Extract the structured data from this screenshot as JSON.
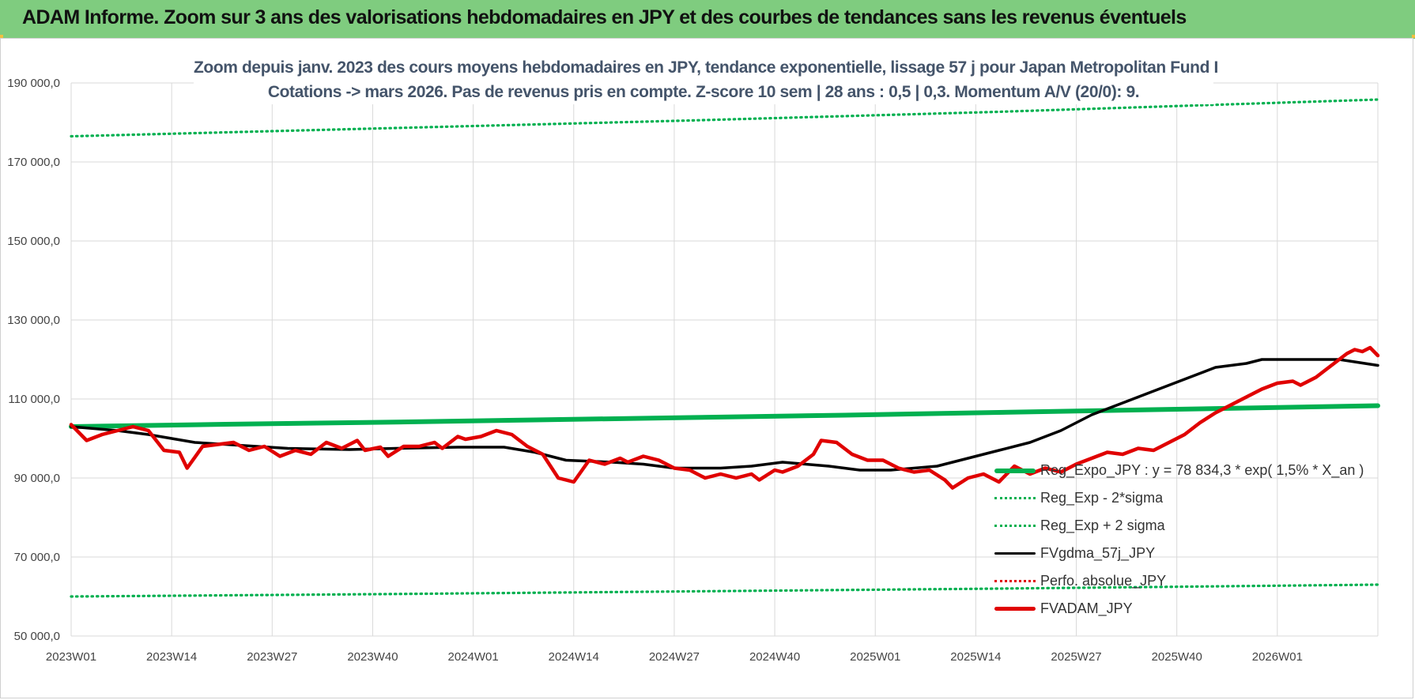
{
  "header": {
    "banner_title": "ADAM Informe. Zoom sur 3 ans des valorisations hebdomadaires en JPY et des courbes de tendances sans les revenus éventuels"
  },
  "chart_data": {
    "type": "line",
    "title_line1": "Zoom depuis janv. 2023 des cours moyens hebdomadaires en JPY, tendance exponentielle, lissage 57 j pour Japan Metropolitan Fund I",
    "title_line2": "Cotations -> mars 2026. Pas de revenus pris en compte. Z-score 10 sem | 28 ans : 0,5 | 0,3. Momentum A/V (20/0): 9.",
    "x_range": [
      0,
      169
    ],
    "ylim": [
      50000,
      190000
    ],
    "y_ticks": [
      {
        "value": 50000,
        "label": "50 000,0"
      },
      {
        "value": 70000,
        "label": "70 000,0"
      },
      {
        "value": 90000,
        "label": "90 000,0"
      },
      {
        "value": 110000,
        "label": "110 000,0"
      },
      {
        "value": 130000,
        "label": "130 000,0"
      },
      {
        "value": 150000,
        "label": "150 000,0"
      },
      {
        "value": 170000,
        "label": "170 000,0"
      },
      {
        "value": 190000,
        "label": "190 000,0"
      }
    ],
    "x_ticks": [
      {
        "index": 0,
        "label": "2023W01"
      },
      {
        "index": 13,
        "label": "2023W14"
      },
      {
        "index": 26,
        "label": "2023W27"
      },
      {
        "index": 39,
        "label": "2023W40"
      },
      {
        "index": 52,
        "label": "2024W01"
      },
      {
        "index": 65,
        "label": "2024W14"
      },
      {
        "index": 78,
        "label": "2024W27"
      },
      {
        "index": 91,
        "label": "2024W40"
      },
      {
        "index": 104,
        "label": "2025W01"
      },
      {
        "index": 117,
        "label": "2025W14"
      },
      {
        "index": 130,
        "label": "2025W27"
      },
      {
        "index": 143,
        "label": "2025W40"
      },
      {
        "index": 156,
        "label": "2026W01"
      }
    ],
    "grid": true,
    "legend_position": "bottom-right",
    "series": [
      {
        "name": "Reg_Expo_JPY : y = 78 834,3 * exp( 1,5% *  X_an )",
        "style": "solid-thick",
        "color": "#00b050",
        "points": [
          [
            0,
            103000
          ],
          [
            20,
            103600
          ],
          [
            40,
            104100
          ],
          [
            60,
            104700
          ],
          [
            80,
            105300
          ],
          [
            100,
            105900
          ],
          [
            120,
            106600
          ],
          [
            140,
            107300
          ],
          [
            169,
            108300
          ]
        ]
      },
      {
        "name": "Reg_Exp - 2*sigma",
        "style": "dotted",
        "color": "#00b050",
        "points": [
          [
            0,
            60000
          ],
          [
            40,
            60600
          ],
          [
            80,
            61300
          ],
          [
            120,
            62000
          ],
          [
            169,
            63000
          ]
        ]
      },
      {
        "name": "Reg_Exp + 2 sigma",
        "style": "dotted",
        "color": "#00b050",
        "points": [
          [
            0,
            176500
          ],
          [
            40,
            178500
          ],
          [
            80,
            180500
          ],
          [
            120,
            182700
          ],
          [
            169,
            185800
          ]
        ]
      },
      {
        "name": "FVgdma_57j_JPY",
        "style": "solid",
        "color": "#000000",
        "points": [
          [
            0,
            103000
          ],
          [
            6,
            102000
          ],
          [
            10,
            101000
          ],
          [
            16,
            99000
          ],
          [
            20,
            98500
          ],
          [
            28,
            97500
          ],
          [
            36,
            97200
          ],
          [
            42,
            97500
          ],
          [
            50,
            97800
          ],
          [
            56,
            97800
          ],
          [
            60,
            96500
          ],
          [
            64,
            94500
          ],
          [
            70,
            94000
          ],
          [
            74,
            93500
          ],
          [
            78,
            92500
          ],
          [
            84,
            92500
          ],
          [
            88,
            93000
          ],
          [
            92,
            94000
          ],
          [
            98,
            93000
          ],
          [
            102,
            92000
          ],
          [
            106,
            92000
          ],
          [
            112,
            93000
          ],
          [
            116,
            95000
          ],
          [
            120,
            97000
          ],
          [
            124,
            99000
          ],
          [
            128,
            102000
          ],
          [
            132,
            106000
          ],
          [
            136,
            109000
          ],
          [
            140,
            112000
          ],
          [
            144,
            115000
          ],
          [
            148,
            118000
          ],
          [
            152,
            119000
          ],
          [
            154,
            120000
          ],
          [
            160,
            120000
          ],
          [
            164,
            120000
          ],
          [
            169,
            118500
          ]
        ]
      },
      {
        "name": "Perfo. absolue_JPY",
        "style": "dotted",
        "color": "#e00000",
        "points": []
      },
      {
        "name": "FVADAM_JPY",
        "style": "solid-thick",
        "color": "#e00000",
        "points": [
          [
            0,
            103500
          ],
          [
            2,
            99500
          ],
          [
            4,
            101000
          ],
          [
            6,
            102000
          ],
          [
            8,
            103000
          ],
          [
            10,
            102000
          ],
          [
            12,
            97000
          ],
          [
            14,
            96500
          ],
          [
            15,
            92500
          ],
          [
            17,
            98000
          ],
          [
            19,
            98500
          ],
          [
            21,
            99000
          ],
          [
            23,
            97000
          ],
          [
            25,
            98000
          ],
          [
            27,
            95500
          ],
          [
            29,
            97000
          ],
          [
            31,
            96000
          ],
          [
            33,
            99000
          ],
          [
            35,
            97500
          ],
          [
            37,
            99500
          ],
          [
            38,
            97000
          ],
          [
            40,
            97800
          ],
          [
            41,
            95500
          ],
          [
            43,
            98000
          ],
          [
            45,
            98000
          ],
          [
            47,
            99000
          ],
          [
            48,
            97500
          ],
          [
            50,
            100500
          ],
          [
            51,
            99800
          ],
          [
            53,
            100500
          ],
          [
            55,
            102000
          ],
          [
            57,
            101000
          ],
          [
            59,
            98000
          ],
          [
            61,
            96000
          ],
          [
            63,
            90000
          ],
          [
            65,
            89000
          ],
          [
            67,
            94500
          ],
          [
            69,
            93500
          ],
          [
            71,
            95000
          ],
          [
            72,
            94000
          ],
          [
            74,
            95500
          ],
          [
            76,
            94500
          ],
          [
            78,
            92500
          ],
          [
            80,
            92000
          ],
          [
            82,
            90000
          ],
          [
            84,
            91000
          ],
          [
            86,
            90000
          ],
          [
            88,
            91000
          ],
          [
            89,
            89500
          ],
          [
            91,
            92000
          ],
          [
            92,
            91500
          ],
          [
            94,
            93000
          ],
          [
            96,
            96000
          ],
          [
            97,
            99500
          ],
          [
            99,
            99000
          ],
          [
            101,
            96000
          ],
          [
            103,
            94500
          ],
          [
            105,
            94500
          ],
          [
            107,
            92500
          ],
          [
            109,
            91500
          ],
          [
            111,
            92000
          ],
          [
            113,
            89500
          ],
          [
            114,
            87500
          ],
          [
            116,
            90000
          ],
          [
            118,
            91000
          ],
          [
            120,
            89000
          ],
          [
            122,
            93000
          ],
          [
            124,
            91000
          ],
          [
            126,
            92500
          ],
          [
            128,
            91500
          ],
          [
            130,
            93500
          ],
          [
            132,
            95000
          ],
          [
            134,
            96500
          ],
          [
            136,
            96000
          ],
          [
            138,
            97500
          ],
          [
            140,
            97000
          ],
          [
            142,
            99000
          ],
          [
            144,
            101000
          ],
          [
            146,
            104000
          ],
          [
            148,
            106500
          ],
          [
            150,
            108500
          ],
          [
            152,
            110500
          ],
          [
            154,
            112500
          ],
          [
            156,
            114000
          ],
          [
            158,
            114500
          ],
          [
            159,
            113500
          ],
          [
            161,
            115500
          ],
          [
            162,
            117000
          ],
          [
            164,
            120000
          ],
          [
            165,
            121500
          ],
          [
            166,
            122500
          ],
          [
            167,
            122000
          ],
          [
            168,
            123000
          ],
          [
            169,
            121000
          ]
        ]
      }
    ]
  }
}
